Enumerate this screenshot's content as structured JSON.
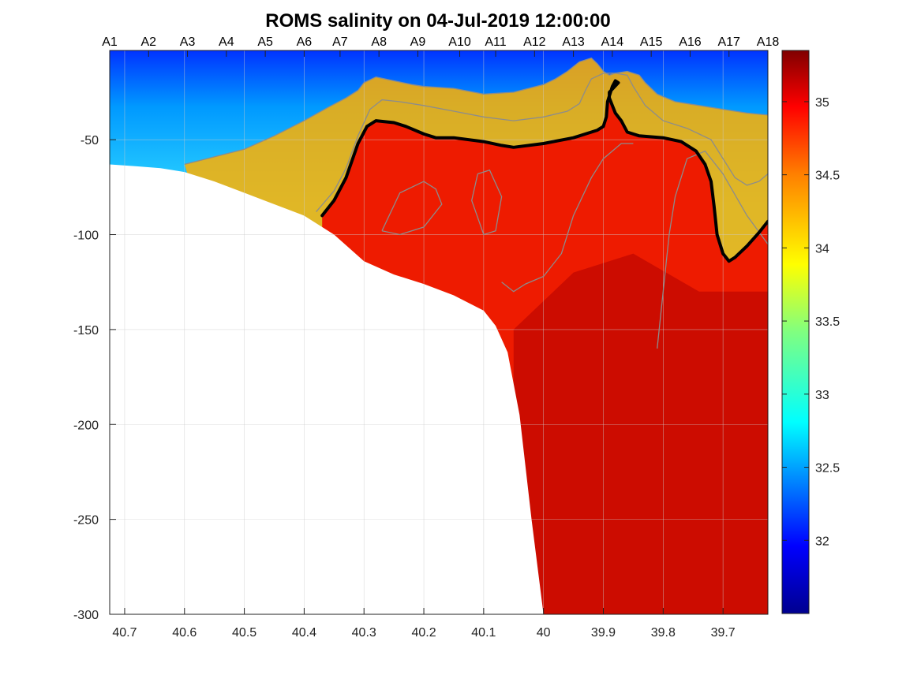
{
  "chart_data": {
    "type": "heatmap",
    "title": "ROMS salinity on 04-Jul-2019 12:00:00",
    "xlabel": "",
    "ylabel": "",
    "x_ticks": [
      "40.7",
      "40.6",
      "40.5",
      "40.4",
      "40.3",
      "40.2",
      "40.1",
      "40",
      "39.9",
      "39.8",
      "39.7"
    ],
    "x_tick_values": [
      40.7,
      40.6,
      40.5,
      40.4,
      40.3,
      40.2,
      40.1,
      40.0,
      39.9,
      39.8,
      39.7
    ],
    "xlim": [
      40.725,
      39.625
    ],
    "x_reversed": true,
    "y_ticks": [
      "-50",
      "-100",
      "-150",
      "-200",
      "-250",
      "-300"
    ],
    "y_tick_values": [
      -50,
      -100,
      -150,
      -200,
      -250,
      -300
    ],
    "ylim": [
      -300,
      -3
    ],
    "grid": true,
    "stations": {
      "labels": [
        "A1",
        "A2",
        "A3",
        "A4",
        "A5",
        "A6",
        "A7",
        "A8",
        "A9",
        "A10",
        "A11",
        "A12",
        "A13",
        "A14",
        "A15",
        "A16",
        "A17",
        "A18"
      ],
      "x": [
        40.725,
        40.66,
        40.595,
        40.53,
        40.465,
        40.4,
        40.34,
        40.275,
        40.21,
        40.14,
        40.08,
        40.015,
        39.95,
        39.885,
        39.82,
        39.755,
        39.69,
        39.625
      ]
    },
    "colorbar": {
      "colormap": "jet",
      "range": [
        31.5,
        35.35
      ],
      "ticks": [
        "32",
        "32.5",
        "33",
        "33.5",
        "34",
        "34.5",
        "35"
      ],
      "tick_values": [
        32,
        32.5,
        33,
        33.5,
        34,
        34.5,
        35
      ]
    },
    "bathymetry": {
      "x": [
        40.725,
        40.68,
        40.64,
        40.6,
        40.55,
        40.5,
        40.45,
        40.4,
        40.35,
        40.3,
        40.25,
        40.2,
        40.15,
        40.1,
        40.08,
        40.06,
        40.04,
        40.02,
        40.0
      ],
      "depth": [
        -63,
        -64,
        -65,
        -67,
        -72,
        -78,
        -84,
        -90,
        -100,
        -114,
        -121,
        -126,
        -132,
        -140,
        -148,
        -162,
        -195,
        -250,
        -300
      ]
    },
    "highlight_contour": {
      "value": 35,
      "x": [
        40.37,
        40.35,
        40.33,
        40.31,
        40.295,
        40.28,
        40.25,
        40.23,
        40.2,
        40.18,
        40.15,
        40.1,
        40.07,
        40.05,
        40.0,
        39.95,
        39.93,
        39.91,
        39.9,
        39.895,
        39.893,
        39.885,
        39.88,
        39.875,
        39.89,
        39.89,
        39.885,
        39.88,
        39.87,
        39.86,
        39.84,
        39.8,
        39.77,
        39.745,
        39.73,
        39.72,
        39.715,
        39.71,
        39.7,
        39.69,
        39.68,
        39.66,
        39.64,
        39.625
      ],
      "y": [
        -90,
        -82,
        -70,
        -52,
        -43,
        -40,
        -41,
        -43,
        -47,
        -49,
        -49,
        -51,
        -53,
        -54,
        -52,
        -49,
        -47,
        -45,
        -43,
        -38,
        -30,
        -22,
        -19,
        -20,
        -25,
        -28,
        -32,
        -36,
        -40,
        -46,
        -48,
        -49,
        -51,
        -56,
        -63,
        -72,
        -85,
        -100,
        -110,
        -114,
        -112,
        -106,
        -99,
        -93
      ]
    },
    "thin_contours": [
      {
        "x": [
          40.6,
          40.5,
          40.45,
          40.4,
          40.36,
          40.33,
          40.31,
          40.3,
          40.28,
          40.25,
          40.22,
          40.2,
          40.15,
          40.1,
          40.05,
          40.0,
          39.98,
          39.96,
          39.94,
          39.92,
          39.91,
          39.9,
          39.89,
          39.88,
          39.86,
          39.84,
          39.83,
          39.81,
          39.78,
          39.74,
          39.7,
          39.66,
          39.625
        ],
        "y": [
          -63,
          -55,
          -48,
          -40,
          -33,
          -28,
          -24,
          -20,
          -17,
          -19,
          -21,
          -22,
          -23,
          -26,
          -25,
          -21,
          -18,
          -14,
          -9,
          -7,
          -10,
          -14,
          -16,
          -15,
          -14,
          -16,
          -20,
          -26,
          -30,
          -32,
          -34,
          -36,
          -37
        ]
      },
      {
        "x": [
          40.38,
          40.35,
          40.33,
          40.31,
          40.29,
          40.27,
          40.24,
          40.2,
          40.15,
          40.1,
          40.05,
          40.0,
          39.96,
          39.94,
          39.93,
          39.92,
          39.9,
          39.88,
          39.86,
          39.85,
          39.83,
          39.8,
          39.76,
          39.72,
          39.7,
          39.68,
          39.66,
          39.64,
          39.625
        ],
        "y": [
          -88,
          -77,
          -65,
          -48,
          -34,
          -29,
          -30,
          -32,
          -35,
          -38,
          -40,
          -38,
          -35,
          -31,
          -24,
          -18,
          -15,
          -15,
          -16,
          -22,
          -32,
          -40,
          -44,
          -50,
          -60,
          -70,
          -74,
          -72,
          -68
        ]
      },
      {
        "x": [
          40.27,
          40.24,
          40.2,
          40.18,
          40.17,
          40.2,
          40.24,
          40.27
        ],
        "y": [
          -98,
          -78,
          -72,
          -76,
          -84,
          -96,
          -100,
          -98
        ]
      },
      {
        "x": [
          40.11,
          40.12,
          40.1,
          40.08,
          40.07,
          40.09,
          40.11
        ],
        "y": [
          -68,
          -82,
          -100,
          -98,
          -80,
          -66,
          -68
        ]
      },
      {
        "x": [
          40.07,
          40.05,
          40.03,
          40.0,
          39.97,
          39.95,
          39.92,
          39.9,
          39.87,
          39.85
        ],
        "y": [
          -125,
          -130,
          -126,
          -122,
          -110,
          -90,
          -70,
          -60,
          -52,
          -52
        ]
      },
      {
        "x": [
          39.81,
          39.8,
          39.79,
          39.78,
          39.76,
          39.73,
          39.7,
          39.66,
          39.625
        ],
        "y": [
          -160,
          -130,
          -100,
          -80,
          -60,
          -56,
          -68,
          -90,
          -105
        ]
      }
    ]
  }
}
